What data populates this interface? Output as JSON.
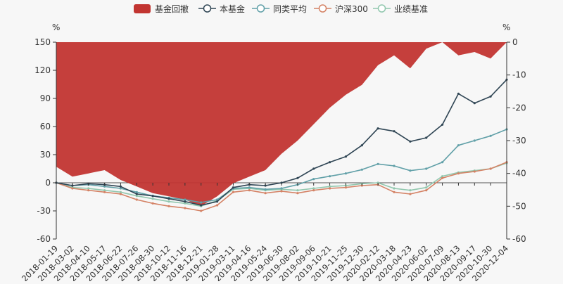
{
  "chart_data": {
    "type": "line",
    "legend": [
      {
        "name": "基金回撤",
        "color": "#c23531",
        "kind": "area"
      },
      {
        "name": "本基金",
        "color": "#2f4554",
        "kind": "line"
      },
      {
        "name": "同类平均",
        "color": "#61a0a8",
        "kind": "line"
      },
      {
        "name": "沪深300",
        "color": "#d48265",
        "kind": "line"
      },
      {
        "name": "业绩基准",
        "color": "#91c7ae",
        "kind": "line"
      }
    ],
    "legend_position": "top-center",
    "left_axis": {
      "unit": "%",
      "min": -60,
      "max": 150,
      "ticks": [
        150,
        120,
        90,
        60,
        30,
        0,
        -30,
        -60
      ]
    },
    "right_axis": {
      "unit": "%",
      "min": -60,
      "max": 0,
      "ticks": [
        0,
        -10,
        -20,
        -30,
        -40,
        -50,
        -60
      ]
    },
    "x_tick_labels": [
      "2018-01-19",
      "2018-03-02",
      "2018-04-10",
      "2018-05-17",
      "2018-06-22",
      "2018-07-26",
      "2018-08-30",
      "2018-10-12",
      "2018-11-16",
      "2018-12-21",
      "2019-01-28",
      "2019-03-11",
      "2019-04-16",
      "2019-05-24",
      "2019-06-30",
      "2019-08-02",
      "2019-09-06",
      "2019-10-21",
      "2019-11-25",
      "2019-12-30",
      "2020-02-12",
      "2020-03-18",
      "2020-04-23",
      "2020-06-02",
      "2020-07-09",
      "2020-08-13",
      "2020-09-17",
      "2020-10-30",
      "2020-12-04"
    ],
    "series": [
      {
        "name": "本基金",
        "axis": "left",
        "color": "#2f4554",
        "x": [
          0,
          1,
          2,
          3,
          4,
          5,
          6,
          7,
          8,
          9,
          10,
          11,
          12,
          13,
          14,
          15,
          16,
          17,
          18,
          19,
          20,
          21,
          22,
          23,
          24,
          25,
          26,
          27,
          28
        ],
        "values": [
          0,
          -3,
          -1,
          -2,
          -4,
          -12,
          -14,
          -17,
          -20,
          -24,
          -20,
          -5,
          -2,
          -3,
          0,
          5,
          15,
          22,
          28,
          40,
          58,
          55,
          44,
          48,
          62,
          95,
          85,
          92,
          110
        ]
      },
      {
        "name": "同类平均",
        "axis": "left",
        "color": "#61a0a8",
        "x": [
          0,
          1,
          2,
          3,
          4,
          5,
          6,
          7,
          8,
          9,
          10,
          11,
          12,
          13,
          14,
          15,
          16,
          17,
          18,
          19,
          20,
          21,
          22,
          23,
          24,
          25,
          26,
          27,
          28
        ],
        "values": [
          0,
          -3,
          -2,
          -4,
          -6,
          -10,
          -14,
          -16,
          -18,
          -21,
          -18,
          -6,
          -5,
          -7,
          -6,
          -2,
          4,
          7,
          10,
          14,
          20,
          18,
          13,
          15,
          22,
          40,
          45,
          50,
          57
        ]
      },
      {
        "name": "沪深300",
        "axis": "left",
        "color": "#d48265",
        "x": [
          0,
          1,
          2,
          3,
          4,
          5,
          6,
          7,
          8,
          9,
          10,
          11,
          12,
          13,
          14,
          15,
          16,
          17,
          18,
          19,
          20,
          21,
          22,
          23,
          24,
          25,
          26,
          27,
          28
        ],
        "values": [
          0,
          -6,
          -8,
          -10,
          -12,
          -18,
          -22,
          -25,
          -27,
          -30,
          -24,
          -10,
          -8,
          -11,
          -9,
          -11,
          -8,
          -6,
          -5,
          -3,
          -2,
          -10,
          -12,
          -8,
          5,
          10,
          12,
          15,
          22
        ]
      },
      {
        "name": "业绩基准",
        "axis": "left",
        "color": "#91c7ae",
        "x": [
          0,
          1,
          2,
          3,
          4,
          5,
          6,
          7,
          8,
          9,
          10,
          11,
          12,
          13,
          14,
          15,
          16,
          17,
          18,
          19,
          20,
          21,
          22,
          23,
          24,
          25,
          26,
          27,
          28
        ],
        "values": [
          0,
          -5,
          -6,
          -8,
          -10,
          -14,
          -17,
          -20,
          -22,
          -25,
          -19,
          -7,
          -6,
          -8,
          -7,
          -8,
          -6,
          -4,
          -3,
          -1,
          0,
          -6,
          -8,
          -5,
          7,
          11,
          13,
          15,
          21
        ]
      },
      {
        "name": "基金回撤",
        "axis": "right",
        "color": "#c23531",
        "x": [
          0,
          1,
          2,
          3,
          4,
          5,
          6,
          7,
          8,
          9,
          10,
          11,
          12,
          13,
          14,
          15,
          16,
          17,
          18,
          19,
          20,
          21,
          22,
          23,
          24,
          25,
          26,
          27,
          28
        ],
        "values": [
          -38,
          -41,
          -40,
          -39,
          -42,
          -44,
          -46,
          -47,
          -48,
          -50,
          -47,
          -43,
          -41,
          -39,
          -34,
          -30,
          -25,
          -20,
          -16,
          -13,
          -7,
          -4,
          -8,
          -2,
          0,
          -4,
          -3,
          -5,
          0
        ]
      }
    ]
  }
}
